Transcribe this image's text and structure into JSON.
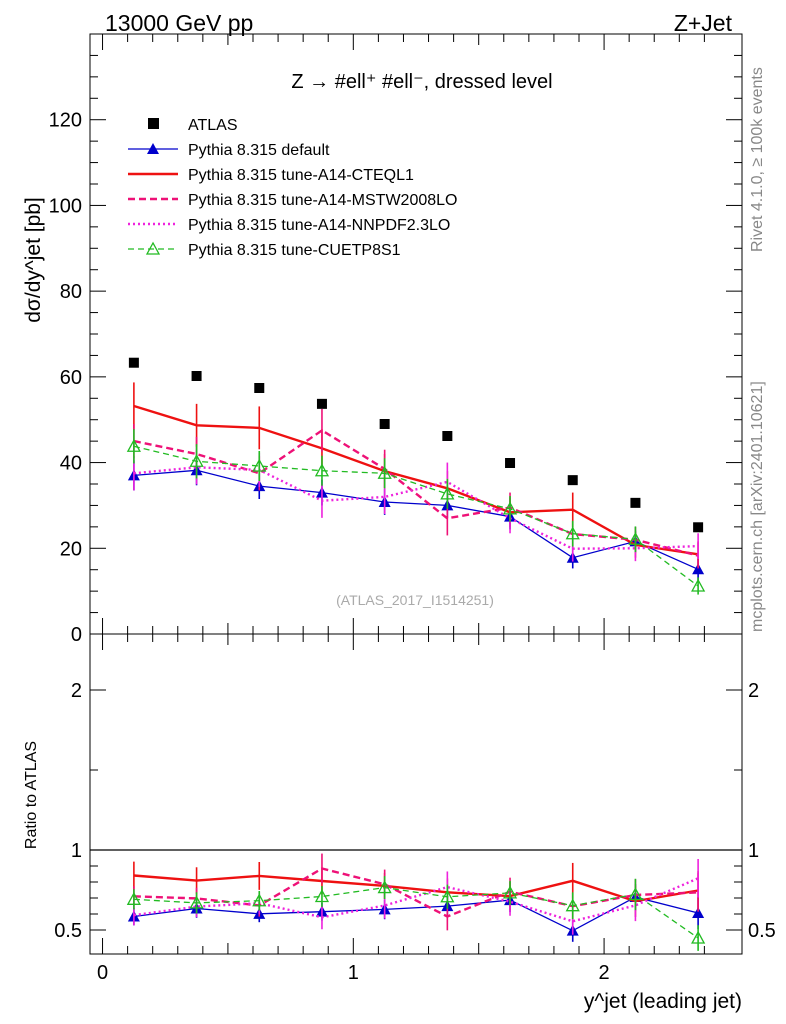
{
  "header": {
    "left": "13000 GeV pp",
    "right": "Z+Jet"
  },
  "side": {
    "rivet": "Rivet 4.1.0, ≥ 100k events",
    "mcplots": "mcplots.cern.ch [arXiv:2401.10621]"
  },
  "chart_data": [
    {
      "type": "scatter",
      "title": "Z → #ell⁺ #ell⁻, dressed level",
      "ylabel": "dσ/dy^jet [pb]",
      "xlabel": "y^jet (leading jet)",
      "watermark": "(ATLAS_2017_I1514251)",
      "xlim": [
        -0.05,
        2.55
      ],
      "ylim": [
        0,
        140
      ],
      "yticks": [
        0,
        20,
        40,
        60,
        80,
        100,
        120
      ],
      "x": [
        0.125,
        0.375,
        0.625,
        0.875,
        1.125,
        1.375,
        1.625,
        1.875,
        2.125,
        2.375
      ],
      "series": [
        {
          "name": "ATLAS",
          "style": "data",
          "color": "#000000",
          "values": [
            63.3,
            60.2,
            57.4,
            53.7,
            49.0,
            46.2,
            39.9,
            35.9,
            30.6,
            24.9
          ],
          "errors": [
            0,
            0,
            0,
            0,
            0,
            0,
            0,
            0,
            0,
            0
          ]
        },
        {
          "name": "Pythia 8.315 default",
          "style": "default",
          "color": "#0000cc",
          "values": [
            37.0,
            38.2,
            34.5,
            33.0,
            30.8,
            30.0,
            27.4,
            17.8,
            21.6,
            15.1
          ],
          "errors": [
            3.5,
            3.5,
            3.0,
            3.0,
            3.0,
            3.0,
            3.0,
            2.5,
            2.5,
            2.5
          ]
        },
        {
          "name": "Pythia 8.315 tune-A14-CTEQL1",
          "style": "cteq",
          "color": "#ee1111",
          "values": [
            53.2,
            48.7,
            48.1,
            43.3,
            38.0,
            34.0,
            28.4,
            29.0,
            20.8,
            18.6
          ],
          "errors": [
            5.5,
            5.0,
            5.0,
            4.5,
            4.0,
            4.0,
            3.5,
            4.0,
            3.0,
            3.0
          ]
        },
        {
          "name": "Pythia 8.315 tune-A14-MSTW2008LO",
          "style": "mstw",
          "color": "#ee1177",
          "values": [
            45.0,
            42.0,
            37.5,
            47.5,
            38.5,
            27.0,
            29.5,
            23.3,
            22.0,
            18.3
          ],
          "errors": [
            4.0,
            4.0,
            4.0,
            5.0,
            4.5,
            4.0,
            3.5,
            3.0,
            3.0,
            3.0
          ]
        },
        {
          "name": "Pythia 8.315 tune-A14-NNPDF2.3LO",
          "style": "nnpdf",
          "color": "#ee22dd",
          "values": [
            37.5,
            38.9,
            38.3,
            31.1,
            32.0,
            35.5,
            27.0,
            19.9,
            20.0,
            20.5
          ],
          "errors": [
            4.0,
            4.0,
            4.0,
            4.0,
            4.0,
            4.5,
            3.5,
            3.0,
            3.0,
            3.0
          ]
        },
        {
          "name": "Pythia 8.315 tune-CUETP8S1",
          "style": "cuetp",
          "color": "#22bb22",
          "values": [
            43.8,
            40.3,
            39.2,
            38.1,
            37.5,
            32.7,
            29.2,
            23.4,
            22.1,
            11.2
          ],
          "errors": [
            4.0,
            4.0,
            3.5,
            3.5,
            3.5,
            3.5,
            3.0,
            3.0,
            3.0,
            2.0
          ]
        }
      ]
    },
    {
      "type": "line",
      "ylabel": "Ratio to ATLAS",
      "ylim": [
        0.35,
        2.35
      ],
      "yticks": [
        0.5,
        1,
        2
      ],
      "xticks": [
        0,
        1,
        2
      ],
      "reference_line": 1
    }
  ]
}
